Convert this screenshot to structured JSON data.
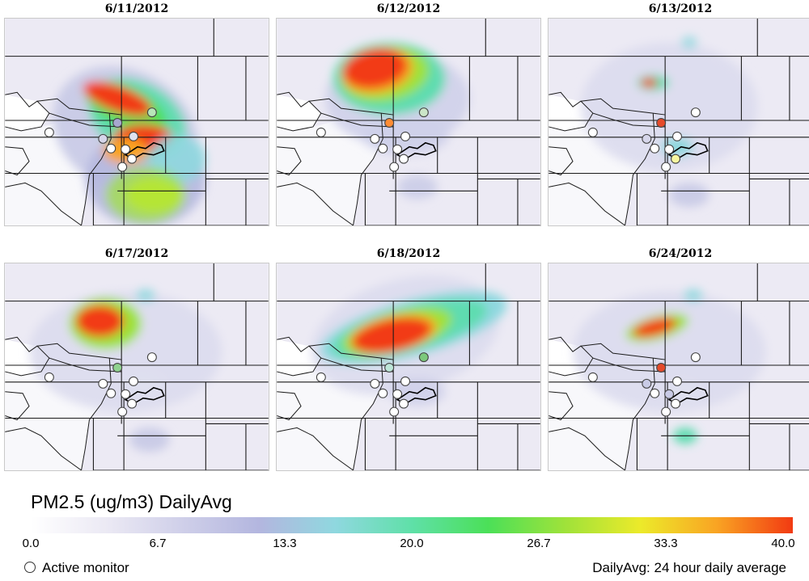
{
  "panels": [
    {
      "id": "p1",
      "date": "6/11/2012",
      "monitors": [
        "#ffffff",
        "#d6d6ea",
        "#a7a7d0",
        "#b8e6b8",
        "#dfe3f0",
        "#ffffff",
        "#ffffff",
        "#ffffff",
        "#ffffff"
      ]
    },
    {
      "id": "p2",
      "date": "6/12/2012",
      "monitors": [
        "#ffffff",
        "#ffffff",
        "#ff8c33",
        "#cbe6c8",
        "#ffffff",
        "#ffffff",
        "#ffffff",
        "#ffffff",
        "#ffffff"
      ]
    },
    {
      "id": "p3",
      "date": "6/13/2012",
      "monitors": [
        "#ffffff",
        "#d6d6ea",
        "#e54a2a",
        "#ffffff",
        "#ffffff",
        "#ffffff",
        "#f7f7a0",
        "#ffffff",
        "#ffffff"
      ]
    },
    {
      "id": "p4",
      "date": "6/17/2012",
      "monitors": [
        "#ffffff",
        "#ffffff",
        "#8fd28f",
        "#ffffff",
        "#ffffff",
        "#ffffff",
        "#ffffff",
        "#ffffff",
        "#ffffff"
      ]
    },
    {
      "id": "p5",
      "date": "6/18/2012",
      "monitors": [
        "#ffffff",
        "#ffffff",
        "#bde6d8",
        "#7cc97c",
        "#ffffff",
        "#ffffff",
        "#ffffff",
        "#ffffff",
        "#ffffff"
      ]
    },
    {
      "id": "p6",
      "date": "6/24/2012",
      "monitors": [
        "#ffffff",
        "#c9cbe6",
        "#e54a2a",
        "#ffffff",
        "#ffffff",
        "#c9cbe6",
        "#ffffff",
        "#ffffff",
        "#ffffff"
      ]
    }
  ],
  "legend": {
    "title": "PM2.5 (ug/m3) DailyAvg",
    "ticks": [
      "0.0",
      "6.7",
      "13.3",
      "20.0",
      "26.7",
      "33.3",
      "40.0"
    ],
    "range": [
      0,
      40
    ],
    "colors": [
      "#ffffff",
      "#ebe9f4",
      "#cfcfe9",
      "#b3b6df",
      "#8fd8df",
      "#5fe0a8",
      "#4be058",
      "#9ee23a",
      "#ecea2a",
      "#f9a423",
      "#f23a12"
    ],
    "monitor_label": "Active monitor",
    "note": "DailyAvg: 24 hour daily average"
  }
}
